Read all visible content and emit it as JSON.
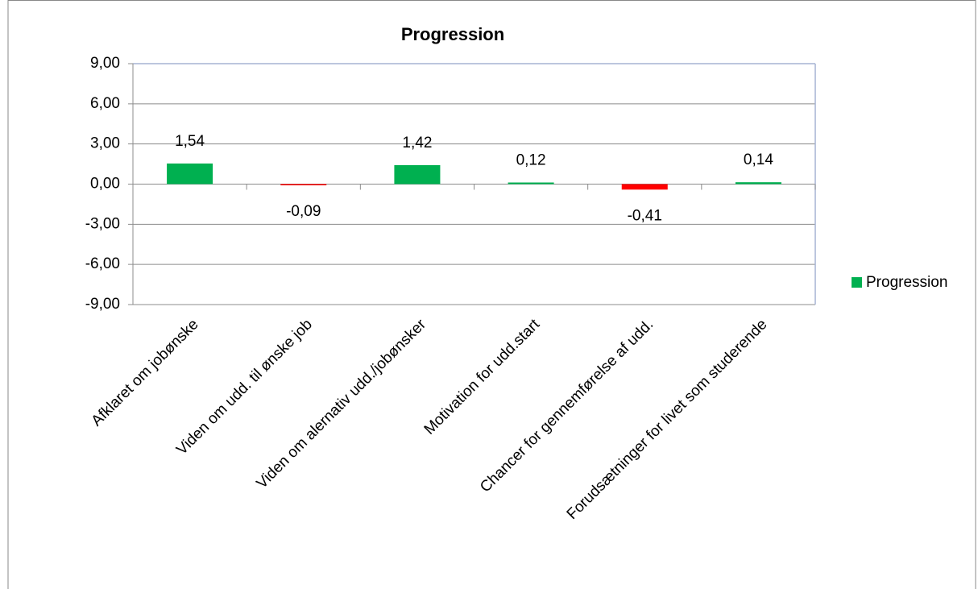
{
  "chart_data": {
    "type": "bar",
    "title": "Progression",
    "categories": [
      "Afklaret om jobønske",
      "Viden om udd. til ønske job",
      "Viden om alernativ udd./jobønsker",
      "Motivation for udd.start",
      "Chancer for gennemførelse af udd.",
      "Forudsætninger for livet som studerende"
    ],
    "series": [
      {
        "name": "Progression",
        "color": "#00b050",
        "values": [
          1.54,
          -0.09,
          1.42,
          0.12,
          -0.41,
          0.14
        ],
        "value_labels": [
          "1,54",
          "-0,09",
          "1,42",
          "0,12",
          "-0,41",
          "0,14"
        ],
        "colors": [
          "#00b050",
          "#ff0000",
          "#00b050",
          "#00b050",
          "#ff0000",
          "#00b050"
        ]
      }
    ],
    "ylim": [
      -9,
      9
    ],
    "yticks": [
      {
        "value": -9,
        "label": "-9,00"
      },
      {
        "value": -6,
        "label": "-6,00"
      },
      {
        "value": -3,
        "label": "-3,00"
      },
      {
        "value": 0,
        "label": "0,00"
      },
      {
        "value": 3,
        "label": "3,00"
      },
      {
        "value": 6,
        "label": "6,00"
      },
      {
        "value": 9,
        "label": "9,00"
      }
    ],
    "grid": true,
    "legend": "right"
  }
}
